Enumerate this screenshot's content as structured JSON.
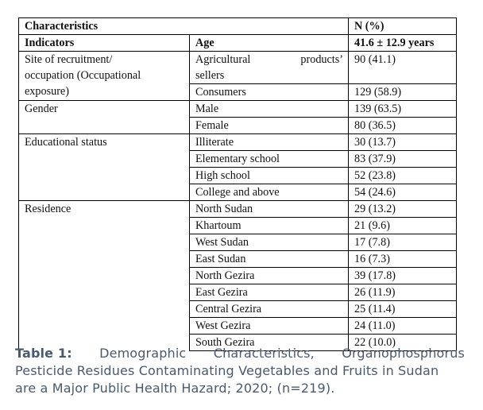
{
  "table": {
    "header": {
      "characteristics": "Characteristics",
      "n_pct": "N (%)",
      "indicators": "Indicators",
      "age": "Age",
      "age_value": "41.6 ± 12.9 years"
    },
    "groups": [
      {
        "name_lines": [
          "Site of recruitment/",
          "occupation (Occupational",
          "exposure)"
        ],
        "rows": [
          {
            "label_parts": [
              "Agricultural",
              "products’"
            ],
            "label_line2": "sellers",
            "value": "90 (41.1)"
          },
          {
            "label": "Consumers",
            "value": "129 (58.9)"
          }
        ]
      },
      {
        "name": "Gender",
        "rows": [
          {
            "label": "Male",
            "value": "139 (63.5)"
          },
          {
            "label": "Female",
            "value": "80 (36.5)"
          }
        ]
      },
      {
        "name": "Educational status",
        "rows": [
          {
            "label": "Illiterate",
            "value": "30 (13.7)"
          },
          {
            "label": "Elementary school",
            "value": "83 (37.9)"
          },
          {
            "label": "High school",
            "value": "52 (23.8)"
          },
          {
            "label": "College and above",
            "value": "54 (24.6)"
          }
        ]
      },
      {
        "name": "Residence",
        "rows": [
          {
            "label": "North Sudan",
            "value": "29 (13.2)"
          },
          {
            "label": "Khartoum",
            "value": "21 (9.6)"
          },
          {
            "label": "West Sudan",
            "value": "17 (7.8)"
          },
          {
            "label": "East Sudan",
            "value": "16 (7.3)"
          },
          {
            "label": "North Gezira",
            "value": "39 (17.8)"
          },
          {
            "label": "East Gezira",
            "value": "26 (11.9)"
          },
          {
            "label": "Central Gezira",
            "value": "25 (11.4)"
          },
          {
            "label": "West Gezira",
            "value": "24 (11.0)"
          },
          {
            "label": "South Gezira",
            "value": "22 (10.0)"
          }
        ]
      }
    ]
  },
  "caption": {
    "label": "Table 1:",
    "line1_words": [
      "Demographic",
      "Characteristics,",
      "Organophosphorus"
    ],
    "line2": "Pesticide Residues Contaminating Vegetables and Fruits in Sudan",
    "line3": "are a Major Public Health Hazard; 2020; (n=219)."
  }
}
